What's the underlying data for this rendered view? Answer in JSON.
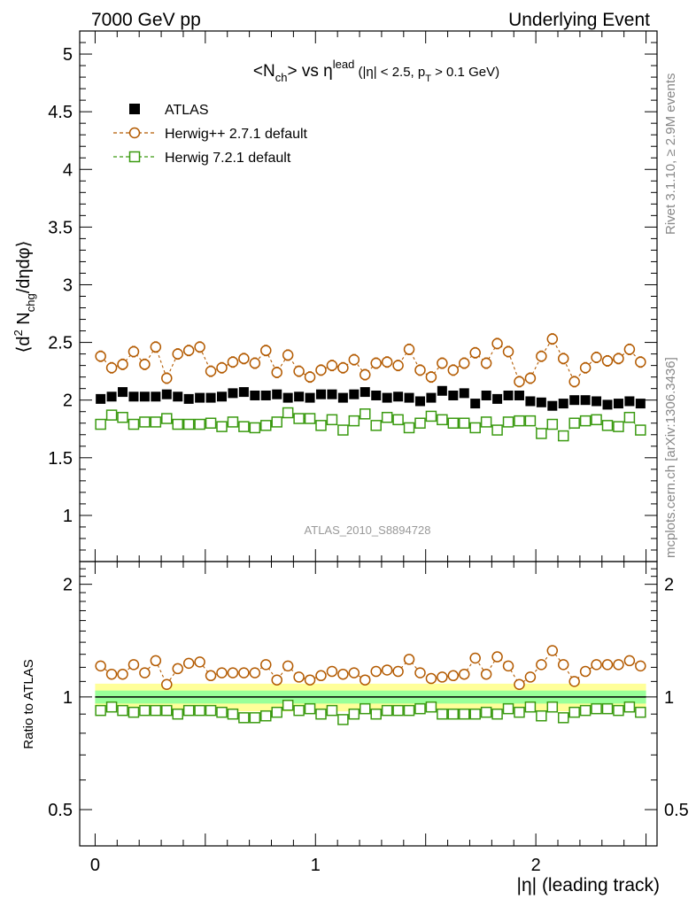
{
  "header": {
    "left": "7000 GeV pp",
    "right": "Underlying Event"
  },
  "title": {
    "lead": "<N",
    "sub1": "ch",
    "mid": "> vs η",
    "sup": "lead",
    "cut": " (|η| < 2.5, p",
    "sub2": "T",
    "tail": " > 0.1 GeV)"
  },
  "side_labels": {
    "rivet": "Rivet 3.1.10, ≥ 2.9M events",
    "mcplots": "mcplots.cern.ch [arXiv:1306.3436]"
  },
  "analysis_id": "ATLAS_2010_S8894728",
  "chart_data": {
    "type": "scatter",
    "title": "<Nch> vs eta_lead (|eta| < 2.5, pT > 0.1 GeV)",
    "xlabel": "|η| (leading track)",
    "ylabel": "⟨d² N_chg/dηdφ⟩",
    "ratio_ylabel": "Ratio to ATLAS",
    "xlim": [
      -0.07,
      2.55
    ],
    "ylim": [
      0.6,
      5.2
    ],
    "ratio_ylim": [
      0.4,
      2.3
    ],
    "x_ticks": [
      0,
      1,
      2
    ],
    "y_ticks": [
      1,
      1.5,
      2,
      2.5,
      3,
      3.5,
      4,
      4.5,
      5
    ],
    "ratio_y_ticks": [
      0.5,
      1,
      2
    ],
    "bin_width": 0.05,
    "x": [
      0.025,
      0.075,
      0.125,
      0.175,
      0.225,
      0.275,
      0.325,
      0.375,
      0.425,
      0.475,
      0.525,
      0.575,
      0.625,
      0.675,
      0.725,
      0.775,
      0.825,
      0.875,
      0.925,
      0.975,
      1.025,
      1.075,
      1.125,
      1.175,
      1.225,
      1.275,
      1.325,
      1.375,
      1.425,
      1.475,
      1.525,
      1.575,
      1.625,
      1.675,
      1.725,
      1.775,
      1.825,
      1.875,
      1.925,
      1.975,
      2.025,
      2.075,
      2.125,
      2.175,
      2.225,
      2.275,
      2.325,
      2.375,
      2.425,
      2.475
    ],
    "legend": [
      {
        "label": "ATLAS",
        "marker": "filled-square",
        "color": "#000000"
      },
      {
        "label": "Herwig++ 2.7.1 default",
        "marker": "open-circle",
        "color": "#b35a00"
      },
      {
        "label": "Herwig 7.2.1 default",
        "marker": "open-square",
        "color": "#3a9a10"
      }
    ],
    "series": [
      {
        "name": "ATLAS",
        "values": [
          2.01,
          2.03,
          2.07,
          2.03,
          2.03,
          2.03,
          2.05,
          2.03,
          2.01,
          2.02,
          2.02,
          2.03,
          2.06,
          2.07,
          2.04,
          2.04,
          2.05,
          2.02,
          2.03,
          2.02,
          2.05,
          2.05,
          2.02,
          2.05,
          2.07,
          2.04,
          2.02,
          2.03,
          2.02,
          1.99,
          2.02,
          2.08,
          2.04,
          2.06,
          1.97,
          2.04,
          2.01,
          2.04,
          2.04,
          1.99,
          1.98,
          1.95,
          1.97,
          2.0,
          2.0,
          1.99,
          1.96,
          1.97,
          1.99,
          1.97
        ]
      },
      {
        "name": "Herwig++ 2.7.1 default",
        "values": [
          2.38,
          2.28,
          2.31,
          2.42,
          2.31,
          2.46,
          2.19,
          2.4,
          2.43,
          2.46,
          2.25,
          2.28,
          2.33,
          2.36,
          2.32,
          2.43,
          2.24,
          2.39,
          2.25,
          2.2,
          2.26,
          2.3,
          2.28,
          2.35,
          2.22,
          2.32,
          2.33,
          2.3,
          2.44,
          2.26,
          2.2,
          2.32,
          2.26,
          2.32,
          2.41,
          2.32,
          2.49,
          2.42,
          2.16,
          2.19,
          2.38,
          2.53,
          2.36,
          2.16,
          2.28,
          2.37,
          2.34,
          2.36,
          2.44,
          2.33
        ]
      },
      {
        "name": "Herwig 7.2.1 default",
        "values": [
          1.79,
          1.87,
          1.85,
          1.79,
          1.81,
          1.81,
          1.84,
          1.79,
          1.79,
          1.79,
          1.8,
          1.77,
          1.81,
          1.77,
          1.76,
          1.78,
          1.81,
          1.89,
          1.84,
          1.84,
          1.78,
          1.83,
          1.74,
          1.82,
          1.88,
          1.78,
          1.85,
          1.83,
          1.76,
          1.8,
          1.86,
          1.83,
          1.8,
          1.8,
          1.76,
          1.81,
          1.74,
          1.81,
          1.82,
          1.82,
          1.71,
          1.79,
          1.69,
          1.8,
          1.82,
          1.83,
          1.78,
          1.77,
          1.85,
          1.74
        ]
      }
    ],
    "ratio_series": [
      {
        "name": "Herwig++ 2.7.1 default",
        "values": [
          1.21,
          1.15,
          1.15,
          1.22,
          1.16,
          1.25,
          1.08,
          1.19,
          1.23,
          1.24,
          1.14,
          1.16,
          1.16,
          1.16,
          1.16,
          1.22,
          1.11,
          1.21,
          1.13,
          1.11,
          1.14,
          1.17,
          1.15,
          1.16,
          1.11,
          1.17,
          1.18,
          1.17,
          1.26,
          1.16,
          1.12,
          1.13,
          1.14,
          1.15,
          1.27,
          1.15,
          1.28,
          1.21,
          1.08,
          1.13,
          1.22,
          1.33,
          1.22,
          1.1,
          1.17,
          1.22,
          1.22,
          1.22,
          1.25,
          1.21
        ]
      },
      {
        "name": "Herwig 7.2.1 default",
        "values": [
          0.92,
          0.94,
          0.92,
          0.91,
          0.92,
          0.92,
          0.92,
          0.9,
          0.92,
          0.92,
          0.92,
          0.91,
          0.9,
          0.88,
          0.88,
          0.89,
          0.91,
          0.95,
          0.92,
          0.93,
          0.9,
          0.92,
          0.87,
          0.9,
          0.93,
          0.9,
          0.92,
          0.92,
          0.92,
          0.93,
          0.94,
          0.9,
          0.9,
          0.9,
          0.9,
          0.91,
          0.9,
          0.93,
          0.91,
          0.94,
          0.89,
          0.94,
          0.88,
          0.91,
          0.92,
          0.93,
          0.93,
          0.92,
          0.94,
          0.91
        ]
      }
    ],
    "ratio_bands": {
      "yellow_halfwidth": 0.085,
      "green_halfwidth": 0.04,
      "yellow_color": "#ffff99",
      "green_color": "#99ff99"
    }
  }
}
